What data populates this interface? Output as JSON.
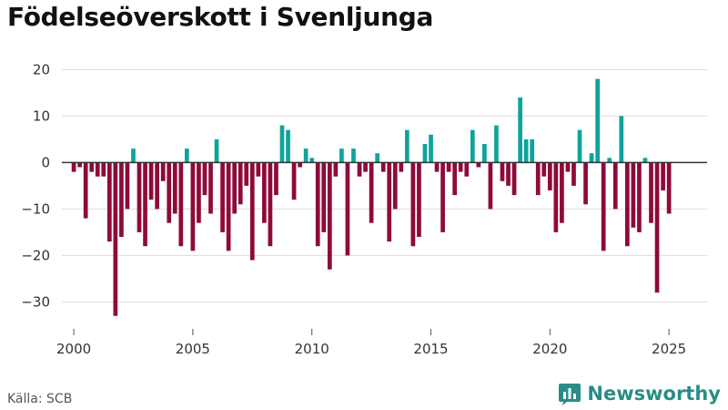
{
  "title": "Födelseöverskott i Svenljunga",
  "source": "Källa: SCB",
  "brand": {
    "name": "Newsworthy",
    "logo_icon": "newsworthy-logo-icon"
  },
  "colors": {
    "positive": "#0fa39b",
    "negative": "#8e0a3a",
    "grid": "#dddddd",
    "zero": "#333333",
    "text": "#333333"
  },
  "chart_data": {
    "type": "bar",
    "title": "Födelseöverskott i Svenljunga",
    "xlabel": "",
    "ylabel": "",
    "frequency": "monthly-ish (quarterly bars)",
    "x_ticks": [
      2000,
      2005,
      2010,
      2015,
      2020,
      2025
    ],
    "y_ticks": [
      20,
      10,
      0,
      -10,
      -20,
      -30
    ],
    "xlim": [
      1999.5,
      2026.6
    ],
    "ylim": [
      -36,
      24
    ],
    "x_start": 2000.0,
    "x_step": 0.25,
    "values": [
      -2,
      -1,
      -12,
      -2,
      -3,
      -3,
      -17,
      -33,
      -16,
      -10,
      3,
      -15,
      -18,
      -8,
      -10,
      -4,
      -13,
      -11,
      -18,
      3,
      -19,
      -13,
      -7,
      -11,
      5,
      -15,
      -19,
      -11,
      -9,
      -5,
      -21,
      -3,
      -13,
      -18,
      -7,
      8,
      7,
      -8,
      -1,
      3,
      1,
      -18,
      -15,
      -23,
      -3,
      3,
      -20,
      3,
      -3,
      -2,
      -13,
      2,
      -2,
      -17,
      -10,
      -2,
      7,
      -18,
      -16,
      4,
      6,
      -2,
      -15,
      -2,
      -7,
      -2,
      -3,
      7,
      -1,
      4,
      -10,
      8,
      -4,
      -5,
      -7,
      14,
      5,
      5,
      -7,
      -3,
      -6,
      -15,
      -13,
      -2,
      -5,
      7,
      -9,
      2,
      18,
      -19,
      1,
      -10,
      10,
      -18,
      -14,
      -15,
      1,
      -13,
      -28,
      -6,
      -11
    ]
  }
}
